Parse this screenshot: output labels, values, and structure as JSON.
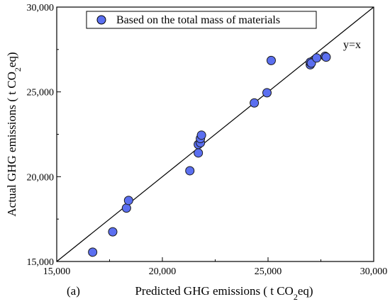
{
  "chart_data": {
    "type": "scatter",
    "xlabel_parts": [
      "Predicted GHG emissions ( t CO",
      "2",
      "eq)"
    ],
    "ylabel_parts": [
      "Actual GHG emissions ( t CO",
      "2",
      "eq)"
    ],
    "xlim": [
      15000,
      30000
    ],
    "ylim": [
      15000,
      30000
    ],
    "xticks": [
      15000,
      20000,
      25000,
      30000
    ],
    "yticks": [
      15000,
      20000,
      25000,
      30000
    ],
    "xtick_labels": [
      "15,000",
      "20,000",
      "25,000",
      "30,000"
    ],
    "ytick_labels": [
      "15,000",
      "20,000",
      "25,000",
      "30,000"
    ],
    "grid": false,
    "legend_position": "top-center",
    "panel_label": "(a)",
    "reference_line": {
      "label": "y=x",
      "slope": 1,
      "intercept": 0
    },
    "series": [
      {
        "name": "Based on the total mass of materials",
        "color": "#5b6ff0",
        "points": [
          [
            16700,
            15550
          ],
          [
            17650,
            16750
          ],
          [
            18300,
            18150
          ],
          [
            18400,
            18600
          ],
          [
            21300,
            20350
          ],
          [
            21700,
            21400
          ],
          [
            21700,
            21900
          ],
          [
            21800,
            22000
          ],
          [
            21800,
            22250
          ],
          [
            21850,
            22450
          ],
          [
            24350,
            24350
          ],
          [
            24950,
            24950
          ],
          [
            25150,
            26850
          ],
          [
            27000,
            26600
          ],
          [
            27000,
            26750
          ],
          [
            27050,
            26700
          ],
          [
            27300,
            27000
          ],
          [
            27700,
            27100
          ],
          [
            27750,
            27050
          ]
        ]
      }
    ]
  }
}
